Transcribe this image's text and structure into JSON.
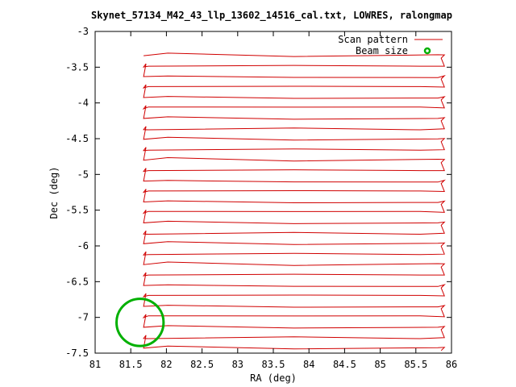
{
  "chart_data": {
    "type": "line",
    "title": "Skynet_57134_M42_43_llp_13602_14516_cal.txt, LOWRES, ralongmap",
    "xlabel": "RA (deg)",
    "ylabel": "Dec (deg)",
    "xlim": [
      81,
      86
    ],
    "ylim": [
      -7.5,
      -3
    ],
    "xticks": [
      "81",
      "81.5",
      "82",
      "82.5",
      "83",
      "83.5",
      "84",
      "84.5",
      "85",
      "85.5",
      "86"
    ],
    "yticks": [
      "-3",
      "-3.5",
      "-4",
      "-4.5",
      "-5",
      "-5.5",
      "-6",
      "-6.5",
      "-7",
      "-7.5"
    ],
    "grid": false,
    "legend_position": "top-right",
    "series": [
      {
        "name": "Scan pattern",
        "color": "#d00000",
        "style": "line",
        "ra_start": 81.68,
        "ra_end": 85.9,
        "dec_first": -3.34,
        "dec_last": -7.43,
        "scan_count": 29
      },
      {
        "name": "Beam size",
        "color": "#00b000",
        "style": "circle",
        "center": [
          81.63,
          -7.07
        ],
        "radius_deg": 0.33
      }
    ]
  }
}
